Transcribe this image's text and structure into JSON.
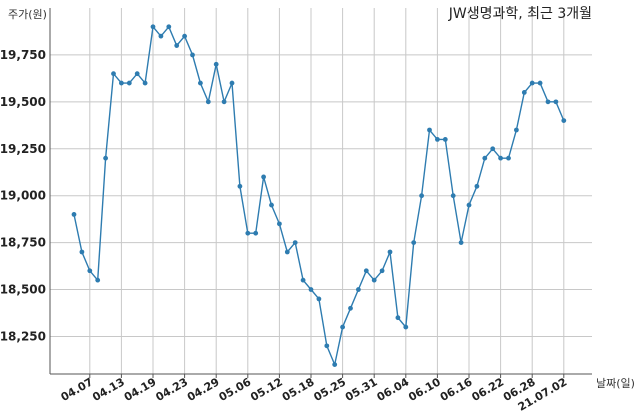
{
  "chart_data": {
    "type": "line",
    "title": "JW생명과학, 최근 3개월",
    "ylabel": "주가(원)",
    "xlabel": "날짜(일)",
    "ylim": [
      18050,
      20000
    ],
    "yticks": [
      18250,
      18500,
      18750,
      19000,
      19250,
      19500,
      19750
    ],
    "ytick_labels": [
      "18,250",
      "18,500",
      "18,750",
      "19,000",
      "19,250",
      "19,500",
      "19,750"
    ],
    "grid": true,
    "line_color": "#2e7cb0",
    "x_ticks": [
      {
        "label": "04.07",
        "index": 2
      },
      {
        "label": "04.13",
        "index": 6
      },
      {
        "label": "04.19",
        "index": 10
      },
      {
        "label": "04.23",
        "index": 14
      },
      {
        "label": "04.29",
        "index": 18
      },
      {
        "label": "05.06",
        "index": 22
      },
      {
        "label": "05.12",
        "index": 26
      },
      {
        "label": "05.18",
        "index": 30
      },
      {
        "label": "05.25",
        "index": 34
      },
      {
        "label": "05.31",
        "index": 38
      },
      {
        "label": "06.04",
        "index": 42
      },
      {
        "label": "06.10",
        "index": 46
      },
      {
        "label": "06.16",
        "index": 50
      },
      {
        "label": "06.22",
        "index": 54
      },
      {
        "label": "06.28",
        "index": 58
      },
      {
        "label": "21.07.02",
        "index": 62
      }
    ],
    "values": [
      18900,
      18700,
      18600,
      18550,
      19200,
      19650,
      19600,
      19600,
      19650,
      19600,
      19900,
      19850,
      19900,
      19800,
      19850,
      19750,
      19600,
      19500,
      19700,
      19500,
      19600,
      19050,
      18800,
      18800,
      19100,
      18950,
      18850,
      18700,
      18750,
      18550,
      18500,
      18450,
      18200,
      18100,
      18300,
      18400,
      18500,
      18600,
      18550,
      18600,
      18700,
      18350,
      18300,
      18750,
      19000,
      19350,
      19300,
      19300,
      19000,
      18750,
      18950,
      19050,
      19200,
      19250,
      19200,
      19200,
      19350,
      19550,
      19600,
      19600,
      19500,
      19500,
      19400
    ]
  }
}
